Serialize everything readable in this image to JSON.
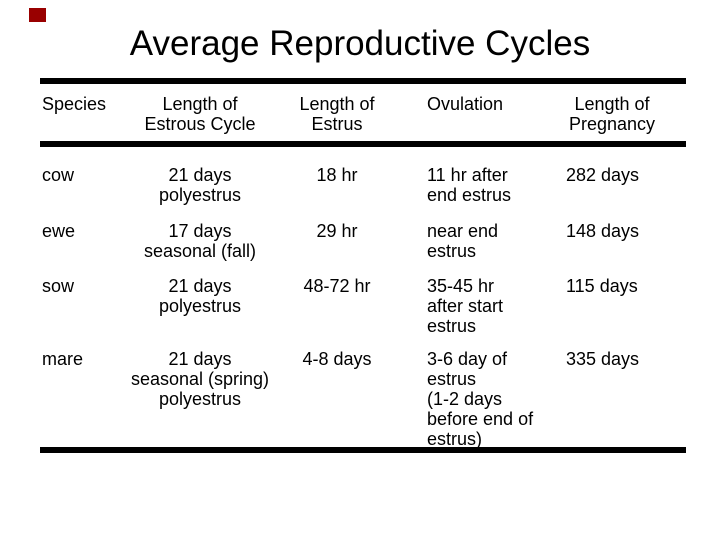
{
  "slide": {
    "title": "Average Reproductive Cycles",
    "accent_color": "#990000"
  },
  "table": {
    "columns": [
      {
        "label": "Species"
      },
      {
        "label": "Length of\nEstrous Cycle"
      },
      {
        "label": "Length of\nEstrus"
      },
      {
        "label": "Ovulation"
      },
      {
        "label": "Length of\nPregnancy"
      }
    ],
    "rows": [
      {
        "species": "cow",
        "estrous_cycle": "21 days\npolyestrus",
        "estrus": "18 hr",
        "ovulation": "11 hr after\nend estrus",
        "pregnancy": "282 days"
      },
      {
        "species": "ewe",
        "estrous_cycle": "17 days\nseasonal (fall)",
        "estrus": "29 hr",
        "ovulation": "near end\nestrus",
        "pregnancy": "148 days"
      },
      {
        "species": "sow",
        "estrous_cycle": "21 days\npolyestrus",
        "estrus": "48-72 hr",
        "ovulation": "35-45 hr\nafter start\nestrus",
        "pregnancy": "115 days"
      },
      {
        "species": "mare",
        "estrous_cycle": "21 days\nseasonal (spring)\npolyestrus",
        "estrus": "4-8 days",
        "ovulation": "3-6 day of\nestrus\n(1-2 days\nbefore end of\nestrus)",
        "pregnancy": "335 days"
      }
    ]
  }
}
